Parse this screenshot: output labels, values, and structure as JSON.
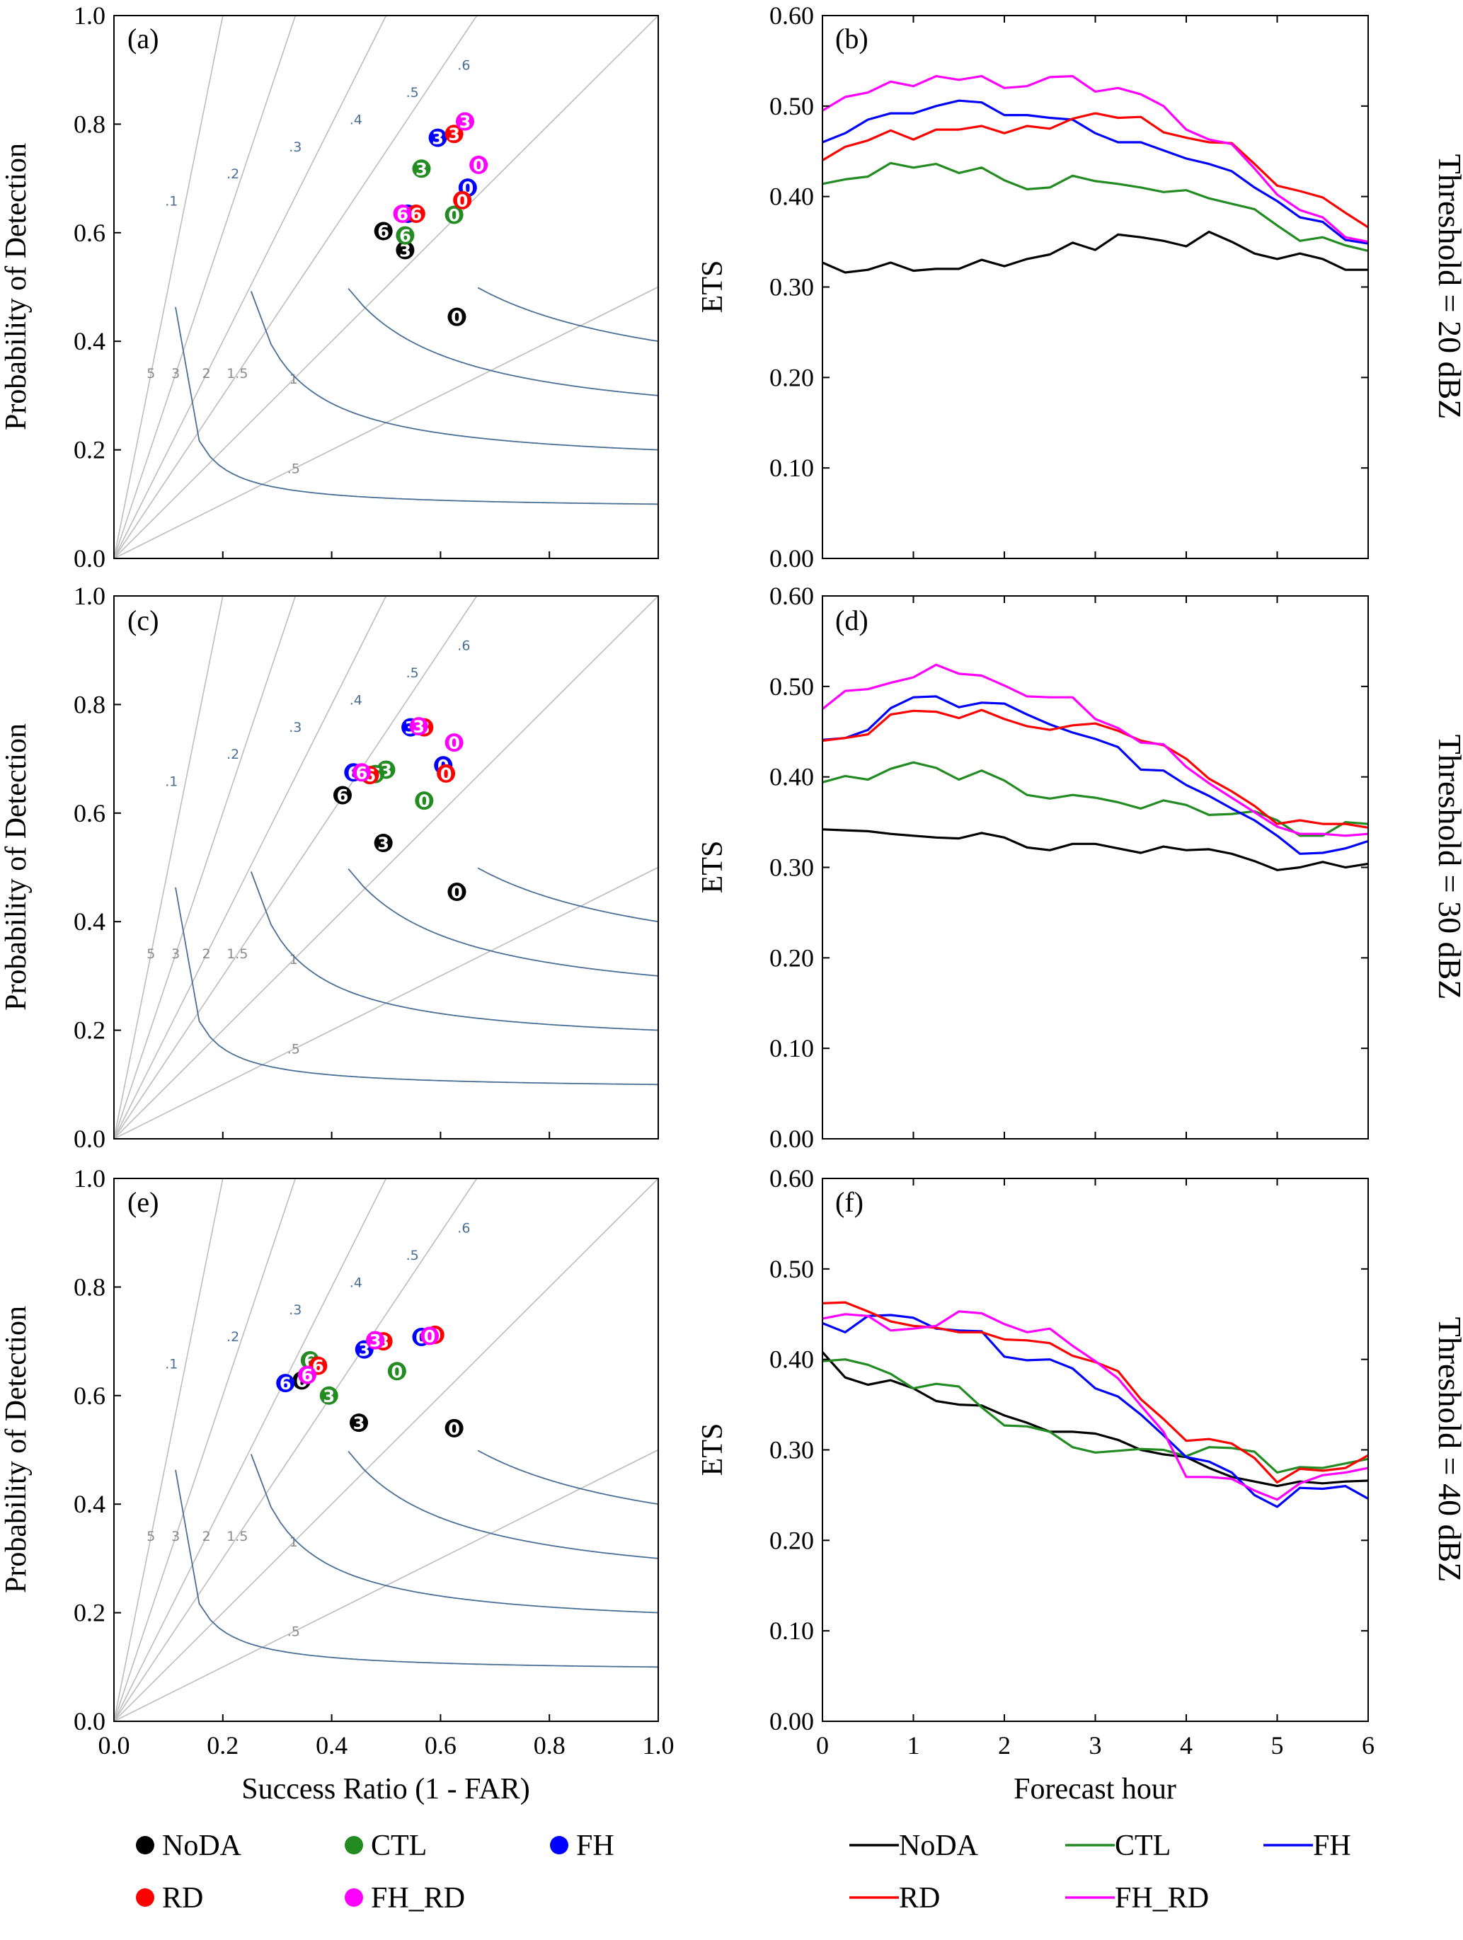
{
  "figure": {
    "colors": {
      "NoDA": "#000000",
      "CTL": "#228b22",
      "FH": "#0000ff",
      "RD": "#ff0000",
      "FH_RD": "#ff00ff",
      "csi_contour": "#4a6f96",
      "bias_line": "#bdbdbd"
    },
    "legend_left": [
      {
        "name": "NoDA",
        "color": "#000000"
      },
      {
        "name": "CTL",
        "color": "#228b22"
      },
      {
        "name": "FH",
        "color": "#0000ff"
      },
      {
        "name": "RD",
        "color": "#ff0000"
      },
      {
        "name": "FH_RD",
        "color": "#ff00ff"
      }
    ],
    "legend_right": [
      {
        "name": "NoDA",
        "color": "#000000"
      },
      {
        "name": "CTL",
        "color": "#228b22"
      },
      {
        "name": "FH",
        "color": "#0000ff"
      },
      {
        "name": "RD",
        "color": "#ff0000"
      },
      {
        "name": "FH_RD",
        "color": "#ff00ff"
      }
    ]
  },
  "chart_data": [
    {
      "type": "scatter",
      "panel": "(a)",
      "row_label": "Threshold = 20 dBZ",
      "xlabel": "",
      "ylabel": "Probability of Detection",
      "xlim": [
        0,
        1
      ],
      "ylim": [
        0,
        1
      ],
      "yticks": [
        "0.0",
        "0.2",
        "0.4",
        "0.6",
        "0.8",
        "1.0"
      ],
      "xticks": [],
      "csi_labels": [
        ".1",
        ".2",
        ".3",
        ".4",
        ".5",
        ".6"
      ],
      "bias_labels": [
        ".5",
        "1",
        "1.5",
        "2",
        "3",
        "5"
      ],
      "series": [
        {
          "name": "NoDA",
          "points": [
            {
              "hour": "0",
              "x": 0.63,
              "y": 0.445
            },
            {
              "hour": "3",
              "x": 0.535,
              "y": 0.568
            },
            {
              "hour": "6",
              "x": 0.495,
              "y": 0.603
            }
          ]
        },
        {
          "name": "CTL",
          "points": [
            {
              "hour": "0",
              "x": 0.625,
              "y": 0.633
            },
            {
              "hour": "3",
              "x": 0.565,
              "y": 0.718
            },
            {
              "hour": "6",
              "x": 0.535,
              "y": 0.595
            }
          ]
        },
        {
          "name": "FH",
          "points": [
            {
              "hour": "0",
              "x": 0.65,
              "y": 0.683
            },
            {
              "hour": "3",
              "x": 0.595,
              "y": 0.775
            },
            {
              "hour": "6",
              "x": 0.54,
              "y": 0.635
            }
          ]
        },
        {
          "name": "RD",
          "points": [
            {
              "hour": "0",
              "x": 0.64,
              "y": 0.66
            },
            {
              "hour": "3",
              "x": 0.625,
              "y": 0.782
            },
            {
              "hour": "6",
              "x": 0.555,
              "y": 0.635
            }
          ]
        },
        {
          "name": "FH_RD",
          "points": [
            {
              "hour": "0",
              "x": 0.67,
              "y": 0.725
            },
            {
              "hour": "3",
              "x": 0.645,
              "y": 0.805
            },
            {
              "hour": "6",
              "x": 0.53,
              "y": 0.635
            }
          ]
        }
      ]
    },
    {
      "type": "line",
      "panel": "(b)",
      "xlabel": "",
      "ylabel": "ETS",
      "xlim": [
        0,
        6
      ],
      "ylim": [
        0,
        0.6
      ],
      "yticks": [
        "0.00",
        "0.10",
        "0.20",
        "0.30",
        "0.40",
        "0.50",
        "0.60"
      ],
      "xticks": [],
      "x": [
        0,
        0.25,
        0.5,
        0.75,
        1,
        1.25,
        1.5,
        1.75,
        2,
        2.25,
        2.5,
        2.75,
        3,
        3.25,
        3.5,
        3.75,
        4,
        4.25,
        4.5,
        4.75,
        5,
        5.25,
        5.5,
        5.75,
        6
      ],
      "series": [
        {
          "name": "NoDA",
          "values": [
            0.327,
            0.316,
            0.319,
            0.327,
            0.318,
            0.32,
            0.32,
            0.33,
            0.323,
            0.331,
            0.336,
            0.349,
            0.341,
            0.358,
            0.355,
            0.351,
            0.345,
            0.361,
            0.35,
            0.337,
            0.331,
            0.337,
            0.331,
            0.319,
            0.319
          ]
        },
        {
          "name": "CTL",
          "values": [
            0.414,
            0.419,
            0.422,
            0.437,
            0.432,
            0.436,
            0.426,
            0.432,
            0.418,
            0.408,
            0.41,
            0.423,
            0.417,
            0.414,
            0.41,
            0.405,
            0.407,
            0.398,
            0.392,
            0.386,
            0.368,
            0.351,
            0.355,
            0.346,
            0.34
          ]
        },
        {
          "name": "FH",
          "values": [
            0.46,
            0.47,
            0.485,
            0.492,
            0.492,
            0.5,
            0.506,
            0.504,
            0.49,
            0.49,
            0.487,
            0.485,
            0.47,
            0.46,
            0.46,
            0.451,
            0.442,
            0.436,
            0.428,
            0.41,
            0.395,
            0.377,
            0.372,
            0.352,
            0.348
          ]
        },
        {
          "name": "RD",
          "values": [
            0.44,
            0.455,
            0.462,
            0.473,
            0.463,
            0.474,
            0.474,
            0.478,
            0.47,
            0.478,
            0.475,
            0.486,
            0.492,
            0.487,
            0.488,
            0.471,
            0.465,
            0.46,
            0.459,
            0.436,
            0.412,
            0.406,
            0.399,
            0.382,
            0.366
          ]
        },
        {
          "name": "FH_RD",
          "values": [
            0.495,
            0.51,
            0.515,
            0.527,
            0.522,
            0.533,
            0.529,
            0.533,
            0.52,
            0.522,
            0.532,
            0.533,
            0.516,
            0.52,
            0.513,
            0.5,
            0.474,
            0.463,
            0.458,
            0.431,
            0.402,
            0.385,
            0.377,
            0.355,
            0.35
          ]
        }
      ]
    },
    {
      "type": "scatter",
      "panel": "(c)",
      "row_label": "Threshold = 30 dBZ",
      "xlabel": "",
      "ylabel": "Probability of Detection",
      "xlim": [
        0,
        1
      ],
      "ylim": [
        0,
        1
      ],
      "yticks": [
        "0.0",
        "0.2",
        "0.4",
        "0.6",
        "0.8",
        "1.0"
      ],
      "xticks": [],
      "csi_labels": [
        ".1",
        ".2",
        ".3",
        ".4",
        ".5",
        ".6"
      ],
      "bias_labels": [
        ".5",
        "1",
        "1.5",
        "2",
        "3",
        "5"
      ],
      "series": [
        {
          "name": "NoDA",
          "points": [
            {
              "hour": "0",
              "x": 0.63,
              "y": 0.455
            },
            {
              "hour": "3",
              "x": 0.495,
              "y": 0.545
            },
            {
              "hour": "6",
              "x": 0.42,
              "y": 0.633
            }
          ]
        },
        {
          "name": "CTL",
          "points": [
            {
              "hour": "0",
              "x": 0.57,
              "y": 0.623
            },
            {
              "hour": "3",
              "x": 0.5,
              "y": 0.68
            },
            {
              "hour": "6",
              "x": 0.48,
              "y": 0.672
            }
          ]
        },
        {
          "name": "FH",
          "points": [
            {
              "hour": "0",
              "x": 0.605,
              "y": 0.688
            },
            {
              "hour": "3",
              "x": 0.545,
              "y": 0.758
            },
            {
              "hour": "6",
              "x": 0.44,
              "y": 0.675
            }
          ]
        },
        {
          "name": "RD",
          "points": [
            {
              "hour": "0",
              "x": 0.61,
              "y": 0.673
            },
            {
              "hour": "3",
              "x": 0.57,
              "y": 0.758
            },
            {
              "hour": "6",
              "x": 0.47,
              "y": 0.67
            }
          ]
        },
        {
          "name": "FH_RD",
          "points": [
            {
              "hour": "0",
              "x": 0.625,
              "y": 0.73
            },
            {
              "hour": "3",
              "x": 0.56,
              "y": 0.76
            },
            {
              "hour": "6",
              "x": 0.455,
              "y": 0.675
            }
          ]
        }
      ]
    },
    {
      "type": "line",
      "panel": "(d)",
      "xlabel": "",
      "ylabel": "ETS",
      "xlim": [
        0,
        6
      ],
      "ylim": [
        0,
        0.6
      ],
      "yticks": [
        "0.00",
        "0.10",
        "0.20",
        "0.30",
        "0.40",
        "0.50",
        "0.60"
      ],
      "xticks": [],
      "x": [
        0,
        0.25,
        0.5,
        0.75,
        1,
        1.25,
        1.5,
        1.75,
        2,
        2.25,
        2.5,
        2.75,
        3,
        3.25,
        3.5,
        3.75,
        4,
        4.25,
        4.5,
        4.75,
        5,
        5.25,
        5.5,
        5.75,
        6
      ],
      "series": [
        {
          "name": "NoDA",
          "values": [
            0.342,
            0.341,
            0.34,
            0.337,
            0.335,
            0.333,
            0.332,
            0.338,
            0.333,
            0.322,
            0.319,
            0.326,
            0.326,
            0.321,
            0.316,
            0.323,
            0.319,
            0.32,
            0.315,
            0.307,
            0.297,
            0.3,
            0.306,
            0.3,
            0.304
          ]
        },
        {
          "name": "CTL",
          "values": [
            0.394,
            0.401,
            0.397,
            0.409,
            0.416,
            0.41,
            0.397,
            0.407,
            0.396,
            0.38,
            0.376,
            0.38,
            0.377,
            0.372,
            0.365,
            0.374,
            0.369,
            0.358,
            0.359,
            0.362,
            0.352,
            0.335,
            0.335,
            0.35,
            0.348
          ]
        },
        {
          "name": "FH",
          "values": [
            0.441,
            0.443,
            0.452,
            0.476,
            0.488,
            0.489,
            0.477,
            0.482,
            0.481,
            0.469,
            0.458,
            0.449,
            0.442,
            0.433,
            0.408,
            0.407,
            0.391,
            0.379,
            0.365,
            0.352,
            0.335,
            0.315,
            0.316,
            0.321,
            0.329
          ]
        },
        {
          "name": "RD",
          "values": [
            0.44,
            0.443,
            0.447,
            0.469,
            0.473,
            0.472,
            0.465,
            0.474,
            0.464,
            0.456,
            0.452,
            0.457,
            0.459,
            0.451,
            0.44,
            0.435,
            0.42,
            0.398,
            0.384,
            0.368,
            0.348,
            0.352,
            0.348,
            0.348,
            0.344
          ]
        },
        {
          "name": "FH_RD",
          "values": [
            0.475,
            0.495,
            0.497,
            0.504,
            0.51,
            0.524,
            0.514,
            0.512,
            0.501,
            0.489,
            0.488,
            0.488,
            0.464,
            0.454,
            0.438,
            0.436,
            0.411,
            0.393,
            0.377,
            0.361,
            0.345,
            0.337,
            0.337,
            0.335,
            0.337
          ]
        }
      ]
    },
    {
      "type": "scatter",
      "panel": "(e)",
      "row_label": "Threshold = 40 dBZ",
      "xlabel": "Success Ratio (1 - FAR)",
      "ylabel": "Probability of Detection",
      "xlim": [
        0,
        1
      ],
      "ylim": [
        0,
        1
      ],
      "yticks": [
        "0.0",
        "0.2",
        "0.4",
        "0.6",
        "0.8",
        "1.0"
      ],
      "xticks": [
        "0.0",
        "0.2",
        "0.4",
        "0.6",
        "0.8",
        "1.0"
      ],
      "csi_labels": [
        ".1",
        ".2",
        ".3",
        ".4",
        ".5",
        ".6"
      ],
      "bias_labels": [
        ".5",
        "1",
        "1.5",
        "2",
        "3",
        "5"
      ],
      "series": [
        {
          "name": "NoDA",
          "points": [
            {
              "hour": "0",
              "x": 0.625,
              "y": 0.54
            },
            {
              "hour": "3",
              "x": 0.45,
              "y": 0.55
            },
            {
              "hour": "6",
              "x": 0.345,
              "y": 0.628
            }
          ]
        },
        {
          "name": "CTL",
          "points": [
            {
              "hour": "0",
              "x": 0.52,
              "y": 0.645
            },
            {
              "hour": "3",
              "x": 0.395,
              "y": 0.6
            },
            {
              "hour": "6",
              "x": 0.36,
              "y": 0.665
            }
          ]
        },
        {
          "name": "FH",
          "points": [
            {
              "hour": "0",
              "x": 0.565,
              "y": 0.708
            },
            {
              "hour": "3",
              "x": 0.46,
              "y": 0.685
            },
            {
              "hour": "6",
              "x": 0.315,
              "y": 0.623
            }
          ]
        },
        {
          "name": "RD",
          "points": [
            {
              "hour": "0",
              "x": 0.59,
              "y": 0.712
            },
            {
              "hour": "3",
              "x": 0.495,
              "y": 0.7
            },
            {
              "hour": "6",
              "x": 0.375,
              "y": 0.655
            }
          ]
        },
        {
          "name": "FH_RD",
          "points": [
            {
              "hour": "0",
              "x": 0.58,
              "y": 0.71
            },
            {
              "hour": "3",
              "x": 0.48,
              "y": 0.702
            },
            {
              "hour": "6",
              "x": 0.355,
              "y": 0.638
            }
          ]
        }
      ]
    },
    {
      "type": "line",
      "panel": "(f)",
      "xlabel": "Forecast hour",
      "ylabel": "ETS",
      "xlim": [
        0,
        6
      ],
      "ylim": [
        0,
        0.6
      ],
      "yticks": [
        "0.00",
        "0.10",
        "0.20",
        "0.30",
        "0.40",
        "0.50",
        "0.60"
      ],
      "xticks": [
        "0",
        "1",
        "2",
        "3",
        "4",
        "5",
        "6"
      ],
      "x": [
        0,
        0.25,
        0.5,
        0.75,
        1,
        1.25,
        1.5,
        1.75,
        2,
        2.25,
        2.5,
        2.75,
        3,
        3.25,
        3.5,
        3.75,
        4,
        4.25,
        4.5,
        4.75,
        5,
        5.25,
        5.5,
        5.75,
        6
      ],
      "series": [
        {
          "name": "NoDA",
          "values": [
            0.408,
            0.38,
            0.372,
            0.377,
            0.368,
            0.354,
            0.35,
            0.349,
            0.338,
            0.33,
            0.32,
            0.32,
            0.318,
            0.311,
            0.3,
            0.295,
            0.292,
            0.28,
            0.27,
            0.265,
            0.26,
            0.265,
            0.263,
            0.265,
            0.266
          ]
        },
        {
          "name": "CTL",
          "values": [
            0.398,
            0.4,
            0.394,
            0.384,
            0.368,
            0.373,
            0.37,
            0.347,
            0.327,
            0.326,
            0.32,
            0.303,
            0.297,
            0.299,
            0.301,
            0.3,
            0.293,
            0.303,
            0.302,
            0.298,
            0.275,
            0.281,
            0.28,
            0.285,
            0.29
          ]
        },
        {
          "name": "FH",
          "values": [
            0.44,
            0.43,
            0.448,
            0.449,
            0.446,
            0.434,
            0.432,
            0.431,
            0.403,
            0.399,
            0.4,
            0.39,
            0.368,
            0.359,
            0.339,
            0.316,
            0.292,
            0.287,
            0.275,
            0.25,
            0.237,
            0.258,
            0.257,
            0.26,
            0.246
          ]
        },
        {
          "name": "RD",
          "values": [
            0.462,
            0.463,
            0.453,
            0.442,
            0.437,
            0.435,
            0.43,
            0.43,
            0.422,
            0.421,
            0.418,
            0.404,
            0.397,
            0.387,
            0.356,
            0.334,
            0.31,
            0.312,
            0.307,
            0.291,
            0.264,
            0.279,
            0.277,
            0.28,
            0.294
          ]
        },
        {
          "name": "FH_RD",
          "values": [
            0.445,
            0.45,
            0.448,
            0.432,
            0.434,
            0.437,
            0.453,
            0.451,
            0.439,
            0.43,
            0.434,
            0.415,
            0.398,
            0.379,
            0.349,
            0.32,
            0.27,
            0.27,
            0.268,
            0.255,
            0.245,
            0.263,
            0.272,
            0.275,
            0.28
          ]
        }
      ]
    }
  ]
}
